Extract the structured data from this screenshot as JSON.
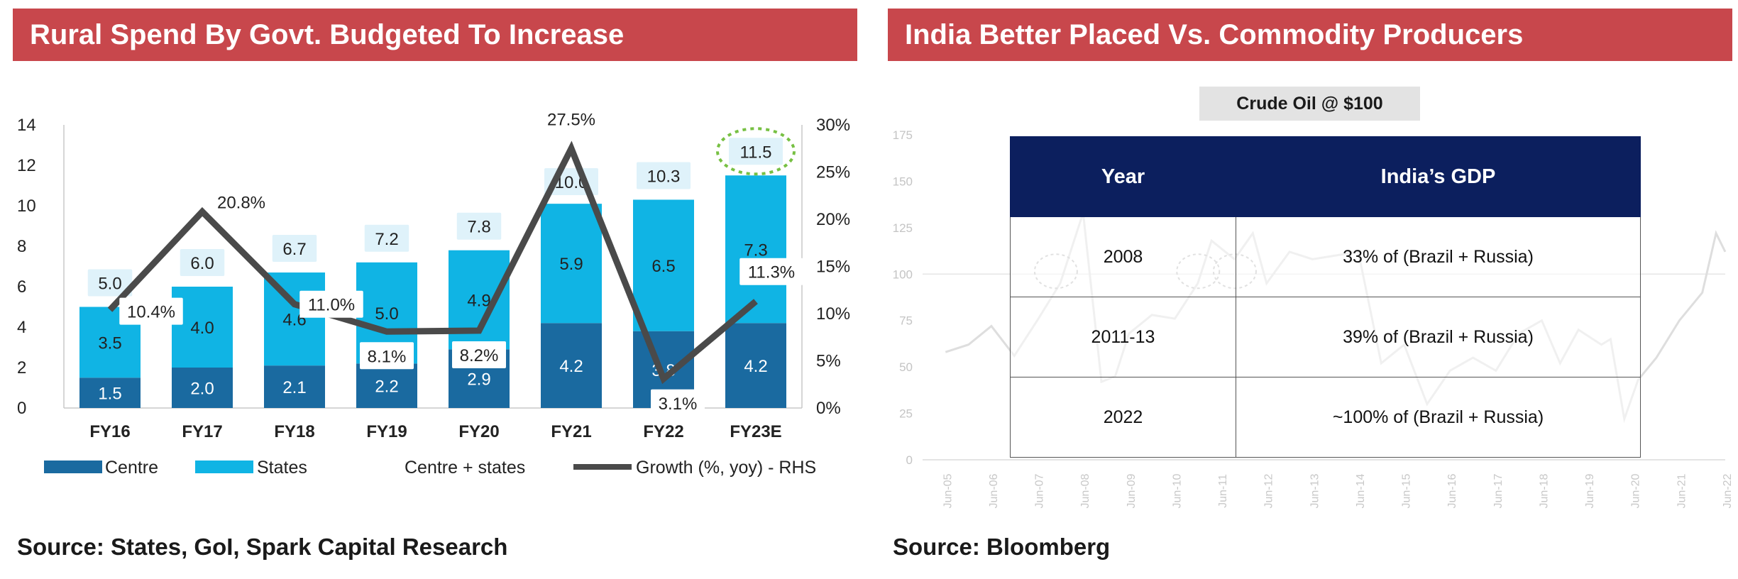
{
  "left_panel": {
    "title": "Rural Spend By Govt. Budgeted To Increase",
    "source": "Source: States, GoI, Spark Capital Research"
  },
  "right_panel": {
    "title": "India Better Placed Vs. Commodity Producers",
    "source": "Source: Bloomberg",
    "annotation": "Crude Oil @ $100",
    "table": {
      "headers": [
        "Year",
        "India’s GDP"
      ],
      "rows": [
        [
          "2008",
          "33% of (Brazil + Russia)"
        ],
        [
          "2011-13",
          "39% of (Brazil + Russia)"
        ],
        [
          "2022",
          "~100% of (Brazil + Russia)"
        ]
      ]
    }
  },
  "chart_data": [
    {
      "type": "bar",
      "stacked": true,
      "categories": [
        "FY16",
        "FY17",
        "FY18",
        "FY19",
        "FY20",
        "FY21",
        "FY22",
        "FY23E"
      ],
      "series": [
        {
          "name": "Centre",
          "values": [
            1.5,
            2.0,
            2.1,
            2.2,
            2.9,
            4.2,
            3.8,
            4.2
          ],
          "labels": [
            "1.5",
            "2.0",
            "2.1",
            "2.2",
            "2.9",
            "4.2",
            "3.8",
            "4.2"
          ],
          "color": "#1a6aa0"
        },
        {
          "name": "States",
          "values": [
            3.5,
            4.0,
            4.6,
            5.0,
            4.9,
            5.9,
            6.5,
            7.3
          ],
          "labels": [
            "3.5",
            "4.0",
            "4.6",
            "5.0",
            "4.9",
            "5.9",
            "6.5",
            "7.3"
          ],
          "color": "#10b4e4"
        },
        {
          "name": "Centre + states",
          "values": [
            5.0,
            6.0,
            6.7,
            7.2,
            7.8,
            10.0,
            10.3,
            11.5
          ],
          "labels": [
            "5.0",
            "6.0",
            "6.7",
            "7.2",
            "7.8",
            "10.0",
            "10.3",
            "11.5"
          ]
        },
        {
          "name": "Growth (%, yoy) - RHS",
          "type": "line",
          "axis": "right",
          "values": [
            10.4,
            20.8,
            11.0,
            8.1,
            8.2,
            27.5,
            3.1,
            11.3
          ],
          "labels": [
            "10.4%",
            "20.8%",
            "11.0%",
            "8.1%",
            "8.2%",
            "27.5%",
            "3.1%",
            "11.3%"
          ],
          "color": "#4a4a4a"
        }
      ],
      "y_ticks": [
        "0",
        "2",
        "4",
        "6",
        "8",
        "10",
        "12",
        "14"
      ],
      "y2_ticks": [
        "0%",
        "5%",
        "10%",
        "15%",
        "20%",
        "25%",
        "30%"
      ],
      "ylim": [
        0,
        14
      ],
      "y2lim": [
        0,
        30
      ],
      "legend_position": "bottom",
      "highlight": "FY23E total circled"
    },
    {
      "type": "line",
      "series_color": "#dedede",
      "x_ticks": [
        "Jun-05",
        "Jun-06",
        "Jun-07",
        "Jun-08",
        "Jun-09",
        "Jun-10",
        "Jun-11",
        "Jun-12",
        "Jun-13",
        "Jun-14",
        "Jun-15",
        "Jun-16",
        "Jun-17",
        "Jun-18",
        "Jun-19",
        "Jun-20",
        "Jun-21",
        "Jun-22"
      ],
      "y_ticks": [
        "0",
        "25",
        "50",
        "75",
        "100",
        "125",
        "150",
        "175"
      ],
      "ylim": [
        0,
        175
      ],
      "reference_line": 100,
      "points": [
        [
          2005.5,
          58
        ],
        [
          2006.0,
          62
        ],
        [
          2006.5,
          72
        ],
        [
          2007.0,
          56
        ],
        [
          2007.5,
          75
        ],
        [
          2008.0,
          95
        ],
        [
          2008.5,
          133
        ],
        [
          2008.9,
          42
        ],
        [
          2009.2,
          45
        ],
        [
          2009.5,
          68
        ],
        [
          2010.0,
          78
        ],
        [
          2010.5,
          76
        ],
        [
          2011.0,
          95
        ],
        [
          2011.3,
          118
        ],
        [
          2011.8,
          108
        ],
        [
          2012.2,
          122
        ],
        [
          2012.5,
          95
        ],
        [
          2013.0,
          112
        ],
        [
          2013.5,
          108
        ],
        [
          2014.0,
          110
        ],
        [
          2014.5,
          112
        ],
        [
          2015.0,
          52
        ],
        [
          2015.5,
          62
        ],
        [
          2016.0,
          30
        ],
        [
          2016.5,
          48
        ],
        [
          2017.0,
          55
        ],
        [
          2017.5,
          48
        ],
        [
          2018.0,
          68
        ],
        [
          2018.5,
          75
        ],
        [
          2018.9,
          52
        ],
        [
          2019.3,
          70
        ],
        [
          2019.8,
          62
        ],
        [
          2020.0,
          65
        ],
        [
          2020.3,
          22
        ],
        [
          2020.6,
          43
        ],
        [
          2021.0,
          55
        ],
        [
          2021.5,
          75
        ],
        [
          2022.0,
          90
        ],
        [
          2022.3,
          122
        ],
        [
          2022.5,
          112
        ]
      ]
    }
  ]
}
